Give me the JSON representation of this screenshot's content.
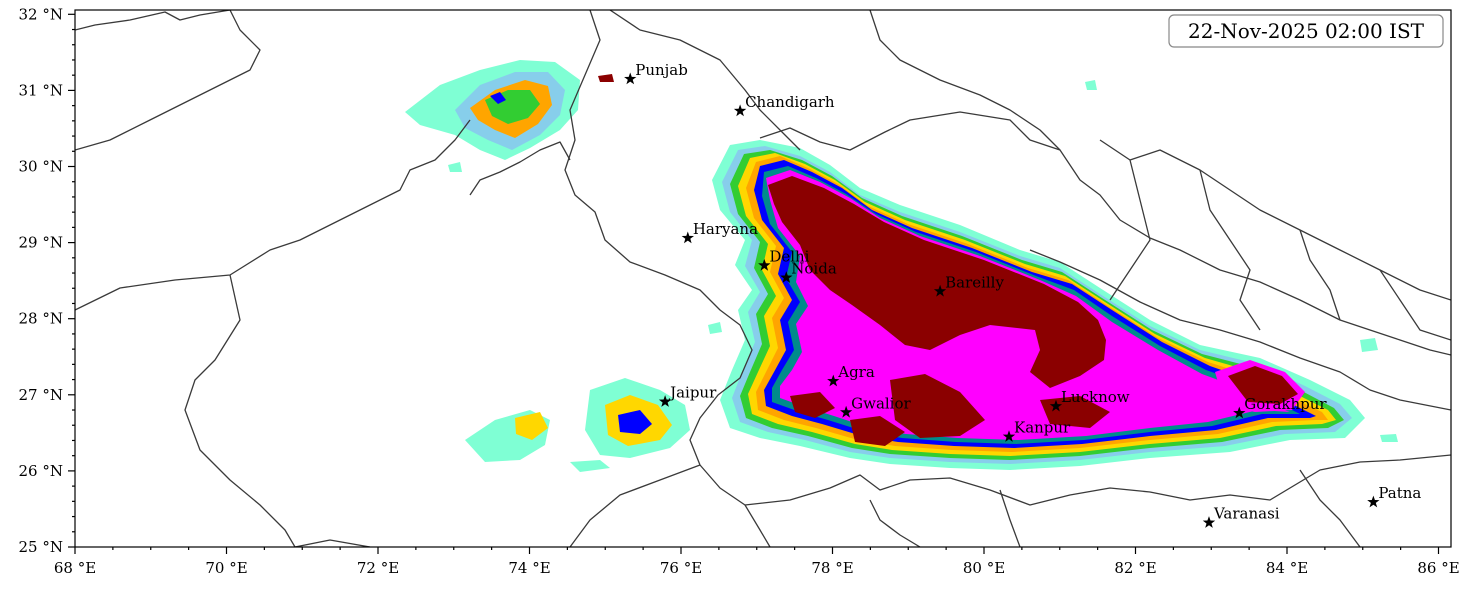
{
  "timestamp": "22-Nov-2025 02:00 IST",
  "map": {
    "lon_range": [
      68,
      86.2
    ],
    "lat_range": [
      25,
      32.1
    ],
    "x_ticks": [
      {
        "value": 68,
        "label": "68 °E"
      },
      {
        "value": 70,
        "label": "70 °E"
      },
      {
        "value": 72,
        "label": "72 °E"
      },
      {
        "value": 74,
        "label": "74 °E"
      },
      {
        "value": 76,
        "label": "76 °E"
      },
      {
        "value": 78,
        "label": "78 °E"
      },
      {
        "value": 80,
        "label": "80 °E"
      },
      {
        "value": 82,
        "label": "82 °E"
      },
      {
        "value": 84,
        "label": "84 °E"
      },
      {
        "value": 86,
        "label": "86 °E"
      }
    ],
    "y_ticks": [
      {
        "value": 25,
        "label": "25 °N"
      },
      {
        "value": 26,
        "label": "26 °N"
      },
      {
        "value": 27,
        "label": "27 °N"
      },
      {
        "value": 28,
        "label": "28 °N"
      },
      {
        "value": 29,
        "label": "29 °N"
      },
      {
        "value": 30,
        "label": "30 °N"
      },
      {
        "value": 31,
        "label": "31 °N"
      },
      {
        "value": 32,
        "label": "32 °N"
      }
    ],
    "field_colors": [
      "#7fffd4",
      "#87ceeb",
      "#32cd32",
      "#ffd700",
      "#ffa500",
      "#0000ff",
      "#008b8b",
      "#ff00ff",
      "#8b0000"
    ],
    "cities": [
      {
        "name": "Punjab",
        "lon": 75.33,
        "lat": 31.15
      },
      {
        "name": "Chandigarh",
        "lon": 76.78,
        "lat": 30.73
      },
      {
        "name": "Haryana",
        "lon": 76.09,
        "lat": 29.06
      },
      {
        "name": "Delhi",
        "lon": 77.1,
        "lat": 28.7
      },
      {
        "name": "Noida",
        "lon": 77.39,
        "lat": 28.54
      },
      {
        "name": "Bareilly",
        "lon": 79.42,
        "lat": 28.36
      },
      {
        "name": "Agra",
        "lon": 78.01,
        "lat": 27.18
      },
      {
        "name": "Jaipur",
        "lon": 75.79,
        "lat": 26.91
      },
      {
        "name": "Lucknow",
        "lon": 80.95,
        "lat": 26.85
      },
      {
        "name": "Gwalior",
        "lon": 78.18,
        "lat": 26.77
      },
      {
        "name": "Gorakhpur",
        "lon": 83.37,
        "lat": 26.76
      },
      {
        "name": "Kanpur",
        "lon": 80.33,
        "lat": 26.45
      },
      {
        "name": "Varanasi",
        "lon": 82.97,
        "lat": 25.32
      },
      {
        "name": "Patna",
        "lon": 85.14,
        "lat": 25.59
      }
    ]
  }
}
